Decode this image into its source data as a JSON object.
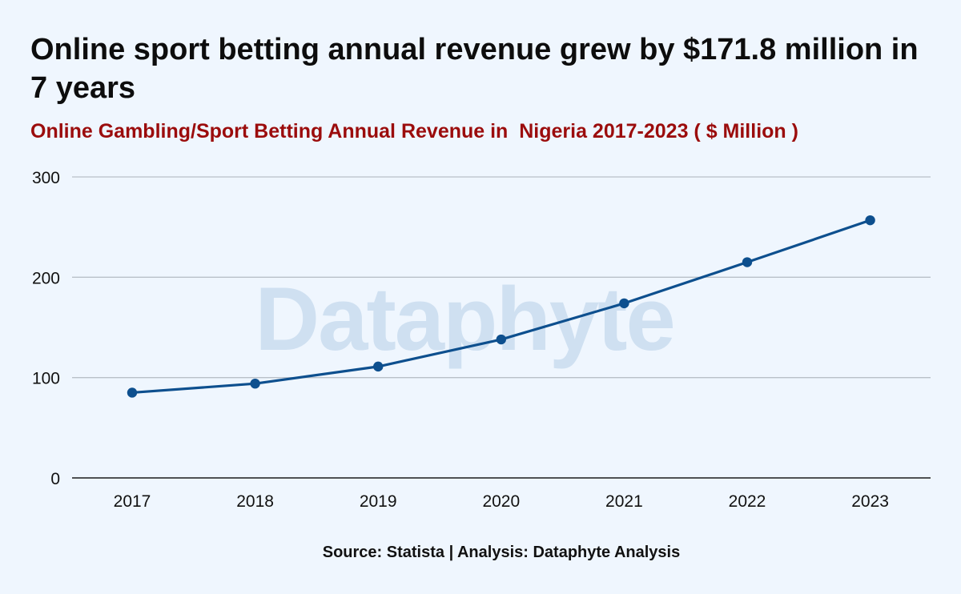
{
  "title": "Online sport betting annual revenue grew by $171.8 million in 7 years",
  "subtitle": "Online Gambling/Sport Betting Annual Revenue in  Nigeria 2017-2023 ( $ Million )",
  "source": "Source: Statista | Analysis: Dataphyte Analysis",
  "watermark": "Dataphyte",
  "colors": {
    "line": "#0d4f8e",
    "grid": "#b9c0c8",
    "axis": "#1a1a1a",
    "watermark": "#cfe0f1",
    "subtitle": "#9b0c0c"
  },
  "chart_data": {
    "type": "line",
    "title": "Online sport betting annual revenue grew by $171.8 million in 7 years",
    "subtitle": "Online Gambling/Sport Betting Annual Revenue in  Nigeria 2017-2023 ( $ Million )",
    "xlabel": "",
    "ylabel": "",
    "categories": [
      "2017",
      "2018",
      "2019",
      "2020",
      "2021",
      "2022",
      "2023"
    ],
    "series": [
      {
        "values": [
          85,
          94,
          111,
          138,
          174,
          215,
          256.8
        ]
      }
    ],
    "ylim": [
      0,
      300
    ],
    "yticks": [
      0,
      100,
      200,
      300
    ],
    "grid": true,
    "legend": "none",
    "markers": true
  }
}
